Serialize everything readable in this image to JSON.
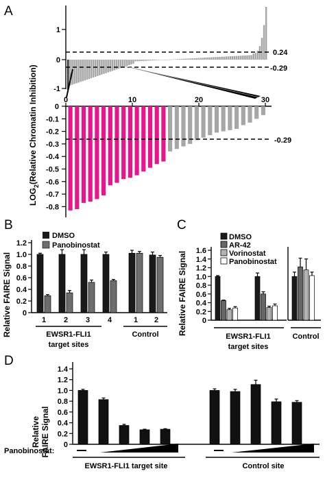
{
  "chart_data": [
    {
      "id": "A",
      "type": "bar",
      "panel_label": "A",
      "ylabel_main": "LOG",
      "ylabel_sub": "2",
      "ylabel_rest": "(Relative Chromatin Inhibition)",
      "top": {
        "ylim": [
          -1,
          2
        ],
        "yticks": [
          "1",
          "0",
          "-1"
        ],
        "thresholds": [
          {
            "value": 0.24,
            "label": "0.24"
          },
          {
            "value": -0.29,
            "label": "-0.29"
          }
        ],
        "n_bars": 95,
        "values_note": "sorted distribution of log2 ratios"
      },
      "bottom": {
        "ylim": [
          -0.9,
          0
        ],
        "yticks": [
          "0",
          "-0.1",
          "-0.2",
          "-0.3",
          "-0.4",
          "-0.5",
          "-0.6",
          "-0.7",
          "-0.8"
        ],
        "xticks": [
          "0",
          "10",
          "20",
          "30"
        ],
        "threshold": {
          "value": -0.29,
          "label": "-0.29"
        },
        "values": [
          -0.83,
          -0.82,
          -0.77,
          -0.76,
          -0.74,
          -0.71,
          -0.63,
          -0.61,
          -0.58,
          -0.57,
          -0.55,
          -0.52,
          -0.49,
          -0.46,
          -0.44,
          -0.36,
          -0.34,
          -0.32,
          -0.3,
          -0.27,
          -0.25,
          -0.23,
          -0.21,
          -0.2,
          -0.19,
          -0.18,
          -0.15,
          -0.13,
          -0.1,
          -0.07
        ],
        "highlighted_count": 15,
        "colors": {
          "highlight": "#e6178c",
          "other": "#a6a6a6"
        }
      }
    },
    {
      "id": "B",
      "type": "bar",
      "panel_label": "B",
      "ylabel": "Relative FAIRE Signal",
      "ylim": [
        0,
        1.2
      ],
      "yticks": [
        "0",
        "0.2",
        "0.4",
        "0.6",
        "0.8",
        "1.0",
        "1.2"
      ],
      "legend": [
        "DMSO",
        "Panobinostat"
      ],
      "colors": [
        "#1a1a1a",
        "#6e6e6e"
      ],
      "groups": [
        {
          "site": "1",
          "values": [
            1.0,
            0.29
          ],
          "errors": [
            0.02,
            0.02
          ]
        },
        {
          "site": "2",
          "values": [
            1.0,
            0.34
          ],
          "errors": [
            0.08,
            0.04
          ]
        },
        {
          "site": "3",
          "values": [
            1.0,
            0.52
          ],
          "errors": [
            0.08,
            0.04
          ]
        },
        {
          "site": "4",
          "values": [
            1.0,
            0.55
          ],
          "errors": [
            0.04,
            0.02
          ]
        },
        {
          "site": "1",
          "values": [
            1.02,
            1.02
          ],
          "errors": [
            0.05,
            0.03
          ]
        },
        {
          "site": "2",
          "values": [
            0.99,
            0.95
          ],
          "errors": [
            0.05,
            0.03
          ]
        }
      ],
      "xgroup_labels": [
        "EWSR1-FLI1",
        "target sites",
        "Control"
      ]
    },
    {
      "id": "C",
      "type": "bar",
      "panel_label": "C",
      "ylabel": "Relative FAIRE Signal",
      "ylim": [
        0,
        1.6
      ],
      "yticks": [
        "0",
        "0.2",
        "0.4",
        "0.6",
        "0.8",
        "1.0",
        "1.2",
        "1.4",
        "1.6"
      ],
      "legend": [
        "DMSO",
        "AR-42",
        "Vorinostat",
        "Panobinostat"
      ],
      "colors": [
        "#1a1a1a",
        "#666666",
        "#b3b3b3",
        "#ffffff"
      ],
      "groups": [
        {
          "values": [
            1.0,
            0.45,
            0.24,
            0.28
          ],
          "errors": [
            0.02,
            0.01,
            0.03,
            0.03
          ]
        },
        {
          "values": [
            1.0,
            0.6,
            0.29,
            0.33
          ],
          "errors": [
            0.08,
            0.05,
            0.03,
            0.04
          ]
        },
        {
          "values": [
            1.0,
            1.22,
            1.15,
            1.02
          ],
          "errors": [
            0.1,
            0.2,
            0.25,
            0.08
          ]
        }
      ],
      "xgroup_labels": [
        "EWSR1-FLI1",
        "target sites",
        "Control"
      ]
    },
    {
      "id": "D",
      "type": "bar",
      "panel_label": "D",
      "ylabel_line1": "Relative",
      "ylabel_line2": "FAIRE Signal",
      "ylim": [
        0,
        1.4
      ],
      "yticks": [
        "0",
        "0.2",
        "0.4",
        "0.6",
        "0.8",
        "1.0",
        "1.2",
        "1.4"
      ],
      "treatment_label": "Panobinostat:",
      "groups": [
        {
          "name": "EWSR1-FLI1 target site",
          "values": [
            1.0,
            0.83,
            0.35,
            0.27,
            0.28
          ],
          "errors": [
            0.02,
            0.03,
            0.02,
            0.01,
            0.01
          ]
        },
        {
          "name": "Control site",
          "values": [
            1.0,
            0.98,
            1.11,
            0.79,
            0.78
          ],
          "errors": [
            0.03,
            0.04,
            0.08,
            0.05,
            0.03
          ]
        }
      ]
    }
  ]
}
